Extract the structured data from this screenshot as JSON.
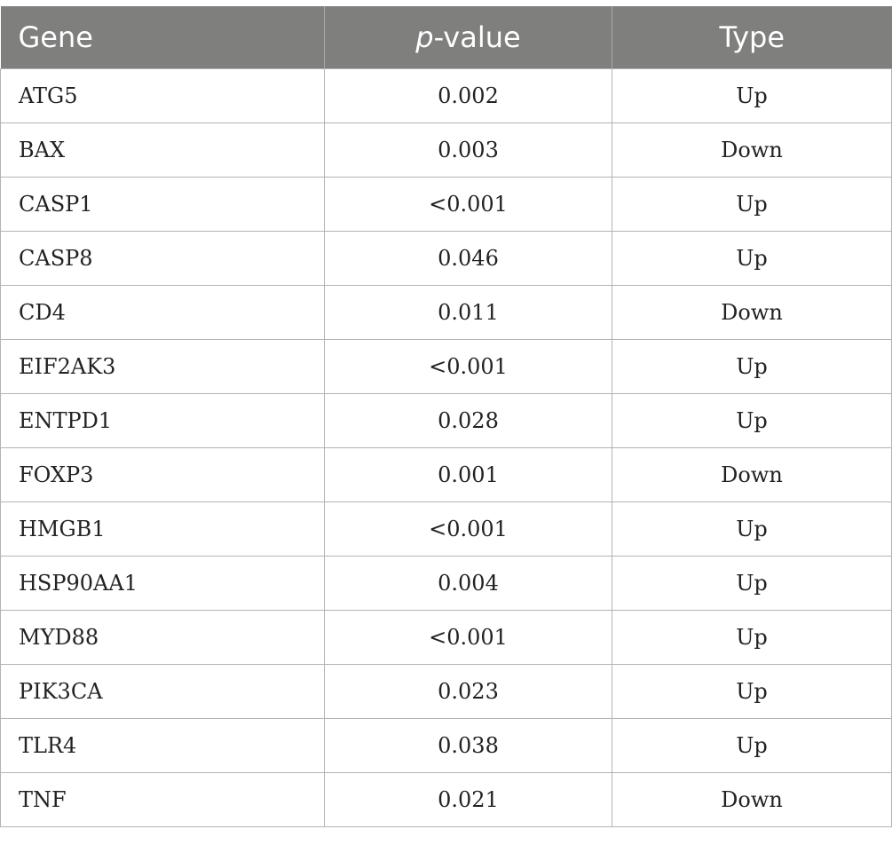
{
  "table": {
    "headers": {
      "gene": "Gene",
      "p_italic": "p",
      "p_rest": "-value",
      "type": "Type"
    },
    "rows": [
      {
        "gene": "ATG5",
        "p": "0.002",
        "type": "Up"
      },
      {
        "gene": "BAX",
        "p": "0.003",
        "type": "Down"
      },
      {
        "gene": "CASP1",
        "p": "<0.001",
        "type": "Up"
      },
      {
        "gene": "CASP8",
        "p": "0.046",
        "type": "Up"
      },
      {
        "gene": "CD4",
        "p": "0.011",
        "type": "Down"
      },
      {
        "gene": "EIF2AK3",
        "p": "<0.001",
        "type": "Up"
      },
      {
        "gene": "ENTPD1",
        "p": "0.028",
        "type": "Up"
      },
      {
        "gene": "FOXP3",
        "p": "0.001",
        "type": "Down"
      },
      {
        "gene": "HMGB1",
        "p": "<0.001",
        "type": "Up"
      },
      {
        "gene": "HSP90AA1",
        "p": "0.004",
        "type": "Up"
      },
      {
        "gene": "MYD88",
        "p": "<0.001",
        "type": "Up"
      },
      {
        "gene": "PIK3CA",
        "p": "0.023",
        "type": "Up"
      },
      {
        "gene": "TLR4",
        "p": "0.038",
        "type": "Up"
      },
      {
        "gene": "TNF",
        "p": "0.021",
        "type": "Down"
      }
    ]
  }
}
